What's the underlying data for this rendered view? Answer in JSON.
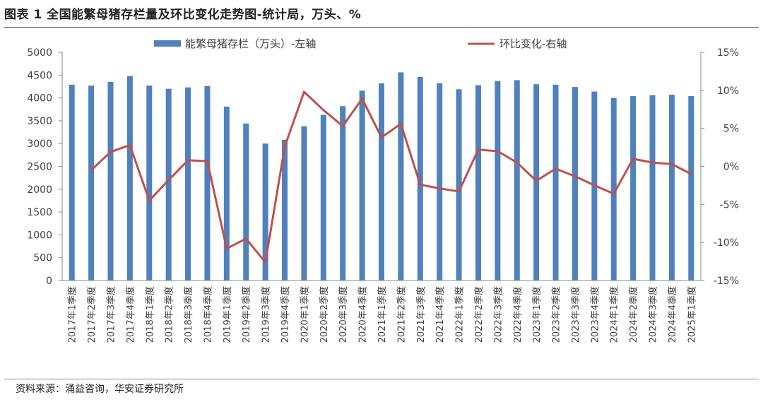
{
  "header": {
    "title": "图表 1 全国能繁母猪存栏量及环比变化走势图-统计局，万头、%"
  },
  "footer": {
    "source": "资料来源：涌益咨询，华安证券研究所"
  },
  "chart_data": {
    "type": "bar+line",
    "categories": [
      "2017年1季度",
      "2017年2季度",
      "2017年3季度",
      "2017年4季度",
      "2018年1季度",
      "2018年2季度",
      "2018年3季度",
      "2018年4季度",
      "2019年1季度",
      "2019年2季度",
      "2019年3季度",
      "2019年4季度",
      "2020年1季度",
      "2020年2季度",
      "2020年3季度",
      "2020年4季度",
      "2021年1季度",
      "2021年2季度",
      "2021年3季度",
      "2021年4季度",
      "2022年1季度",
      "2022年2季度",
      "2022年3季度",
      "2022年4季度",
      "2023年1季度",
      "2023年2季度",
      "2023年3季度",
      "2023年4季度",
      "2024年1季度",
      "2024年2季度",
      "2024年3季度",
      "2024年4季度",
      "2025年1季度"
    ],
    "series": [
      {
        "name": "能繁母猪存栏（万头）-左轴",
        "type": "bar",
        "axis": "left",
        "color": "#4f81bd",
        "values": [
          4290,
          4270,
          4350,
          4480,
          4270,
          4200,
          4230,
          4260,
          3810,
          3440,
          3000,
          3080,
          3380,
          3630,
          3820,
          4160,
          4320,
          4560,
          4460,
          4320,
          4190,
          4280,
          4370,
          4390,
          4300,
          4290,
          4240,
          4140,
          4000,
          4040,
          4060,
          4070,
          4040
        ]
      },
      {
        "name": "环比变化-右轴",
        "type": "line",
        "axis": "right",
        "color": "#c0504d",
        "values": [
          null,
          -0.5,
          1.9,
          2.8,
          -4.5,
          -1.8,
          0.8,
          0.7,
          -10.8,
          -9.5,
          -12.6,
          2.6,
          9.8,
          7.4,
          5.3,
          8.9,
          3.8,
          5.6,
          -2.4,
          -2.9,
          -3.3,
          2.2,
          2.0,
          0.5,
          -1.9,
          -0.3,
          -1.3,
          -2.5,
          -3.6,
          1.0,
          0.5,
          0.3,
          -1.0
        ]
      }
    ],
    "y_left": {
      "min": 0,
      "max": 5000,
      "ticks": [
        "0",
        "500",
        "1000",
        "1500",
        "2000",
        "2500",
        "3000",
        "3500",
        "4000",
        "4500",
        "5000"
      ]
    },
    "y_right": {
      "min": -15,
      "max": 15,
      "ticks": [
        "-15%",
        "-10%",
        "-5%",
        "0%",
        "5%",
        "10%",
        "15%"
      ]
    },
    "legend": {
      "placement": "top"
    },
    "grid": false
  }
}
